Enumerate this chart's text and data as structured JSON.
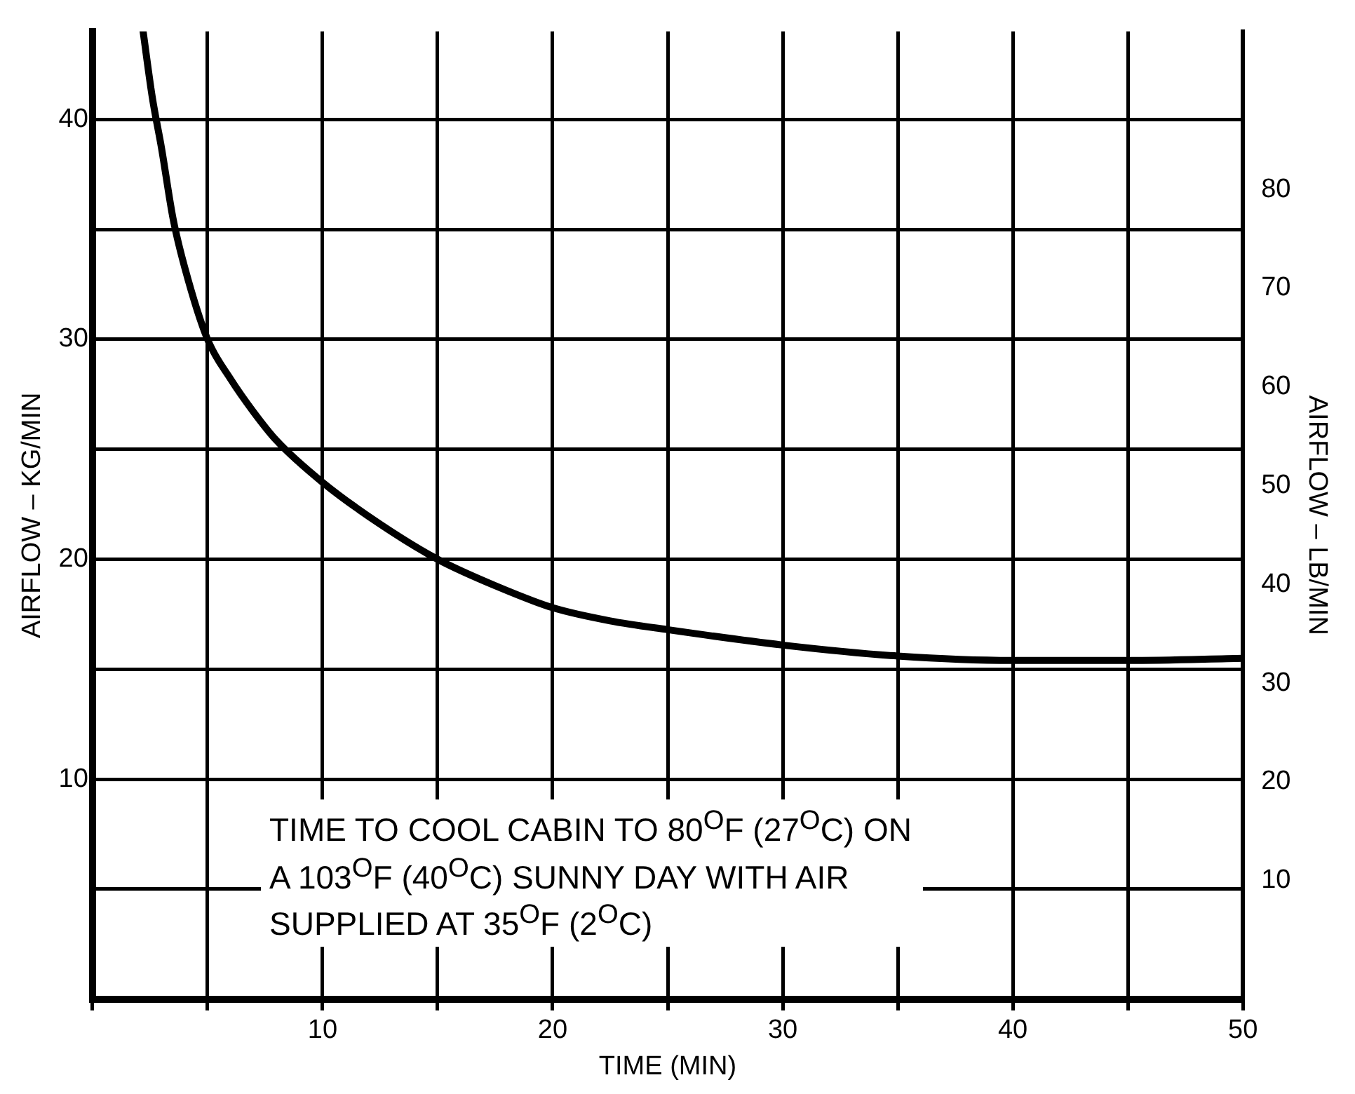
{
  "chart_data": {
    "type": "line",
    "xlabel": "TIME (MIN)",
    "ylabel": "AIRFLOW – KG/MIN",
    "y2label": "AIRFLOW – LB/MIN",
    "x": [
      2.2,
      2.6,
      3,
      3.5,
      4,
      5,
      6,
      7,
      8,
      10,
      12.5,
      15,
      17.5,
      20,
      22.5,
      25,
      30,
      35,
      40,
      45,
      50
    ],
    "series": [
      {
        "color": "#000000",
        "values": [
          44,
          41,
          38.7,
          35.5,
          33.3,
          30,
          28.2,
          26.7,
          25.4,
          23.5,
          21.6,
          20,
          18.8,
          17.8,
          17.2,
          16.8,
          16.1,
          15.6,
          15.4,
          15.4,
          15.5
        ]
      }
    ],
    "xlim": [
      0,
      50
    ],
    "xticks": [
      {
        "value": 0,
        "label": null
      },
      {
        "value": 5,
        "label": null
      },
      10,
      {
        "value": 15,
        "label": null
      },
      20,
      {
        "value": 25,
        "label": null
      },
      30,
      {
        "value": 35,
        "label": null
      },
      40,
      {
        "value": 45,
        "label": null
      },
      50
    ],
    "ylim": [
      0,
      44
    ],
    "yticks": [
      {
        "value": 0,
        "label": null
      },
      {
        "value": 5,
        "label": null
      },
      10,
      {
        "value": 15,
        "label": null
      },
      20,
      {
        "value": 25,
        "label": null
      },
      30,
      {
        "value": 35,
        "label": null
      },
      40
    ],
    "y2lim": [
      -2,
      96
    ],
    "y2ticks": [
      10,
      20,
      30,
      40,
      50,
      60,
      70,
      80
    ],
    "grid": true,
    "legend": false,
    "marker": "none",
    "line_style": "solid",
    "annotations": [
      "TIME TO COOL CABIN TO 80$^{O}$F (27$^{O}$C) ON A 103$^{O}$F (40$^{O}$C) SUNNY DAY WITH AIR SUPPLIED AT 35$^{O}$F (2$^{O}$C)"
    ]
  }
}
